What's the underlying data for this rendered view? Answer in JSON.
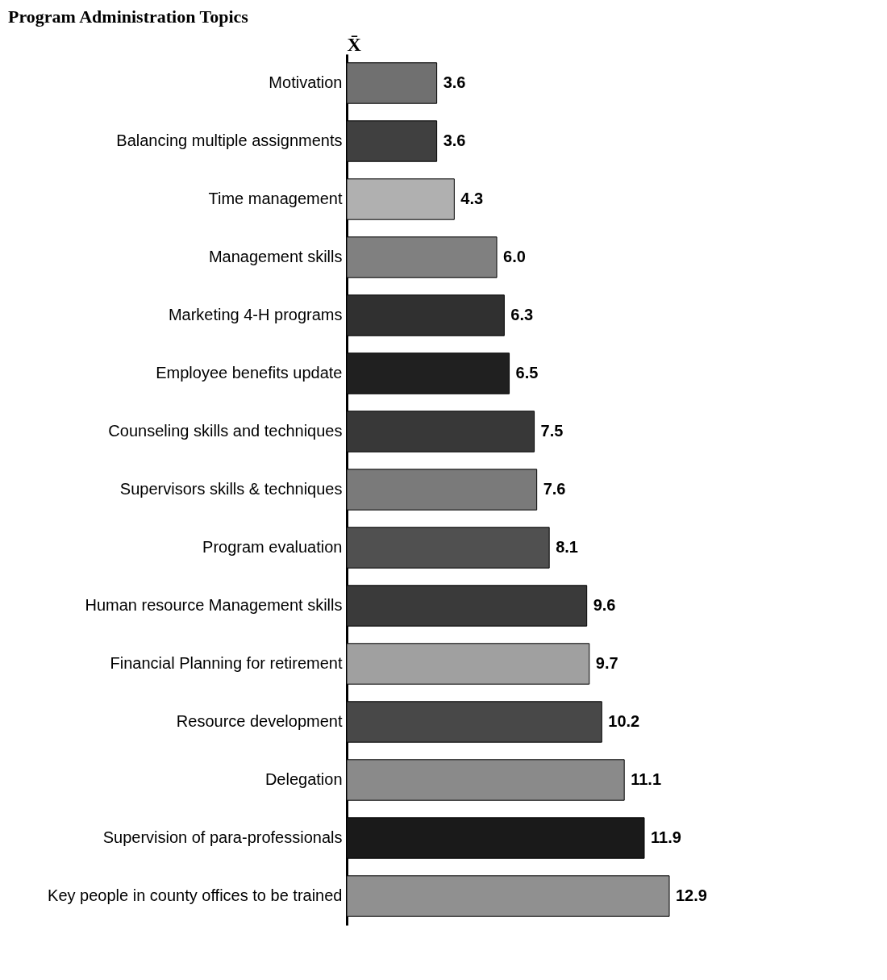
{
  "chart_data": {
    "type": "bar",
    "orientation": "horizontal",
    "title": "Program Administration Topics",
    "xlabel": "X̄",
    "categories": [
      "Motivation",
      "Balancing multiple assignments",
      "Time management",
      "Management skills",
      "Marketing 4-H programs",
      "Employee benefits update",
      "Counseling skills and techniques",
      "Supervisors skills & techniques",
      "Program evaluation",
      "Human resource Management skills",
      "Financial Planning for retirement",
      "Resource development",
      "Delegation",
      "Supervision of para-professionals",
      "Key people in county offices to be trained"
    ],
    "values": [
      3.6,
      3.6,
      4.3,
      6.0,
      6.3,
      6.5,
      7.5,
      7.6,
      8.1,
      9.6,
      9.7,
      10.2,
      11.1,
      11.9,
      12.9
    ],
    "value_labels": [
      "3.6",
      "3.6",
      "4.3",
      "6.0",
      "6.3",
      "6.5",
      "7.5",
      "7.6",
      "8.1",
      "9.6",
      "9.7",
      "10.2",
      "11.1",
      "11.9",
      "12.9"
    ],
    "colors": [
      "#707070",
      "#404040",
      "#b0b0b0",
      "#808080",
      "#303030",
      "#202020",
      "#383838",
      "#7a7a7a",
      "#505050",
      "#3a3a3a",
      "#a0a0a0",
      "#484848",
      "#8a8a8a",
      "#1a1a1a",
      "#909090"
    ],
    "tick_labels": "y",
    "grid": false
  }
}
